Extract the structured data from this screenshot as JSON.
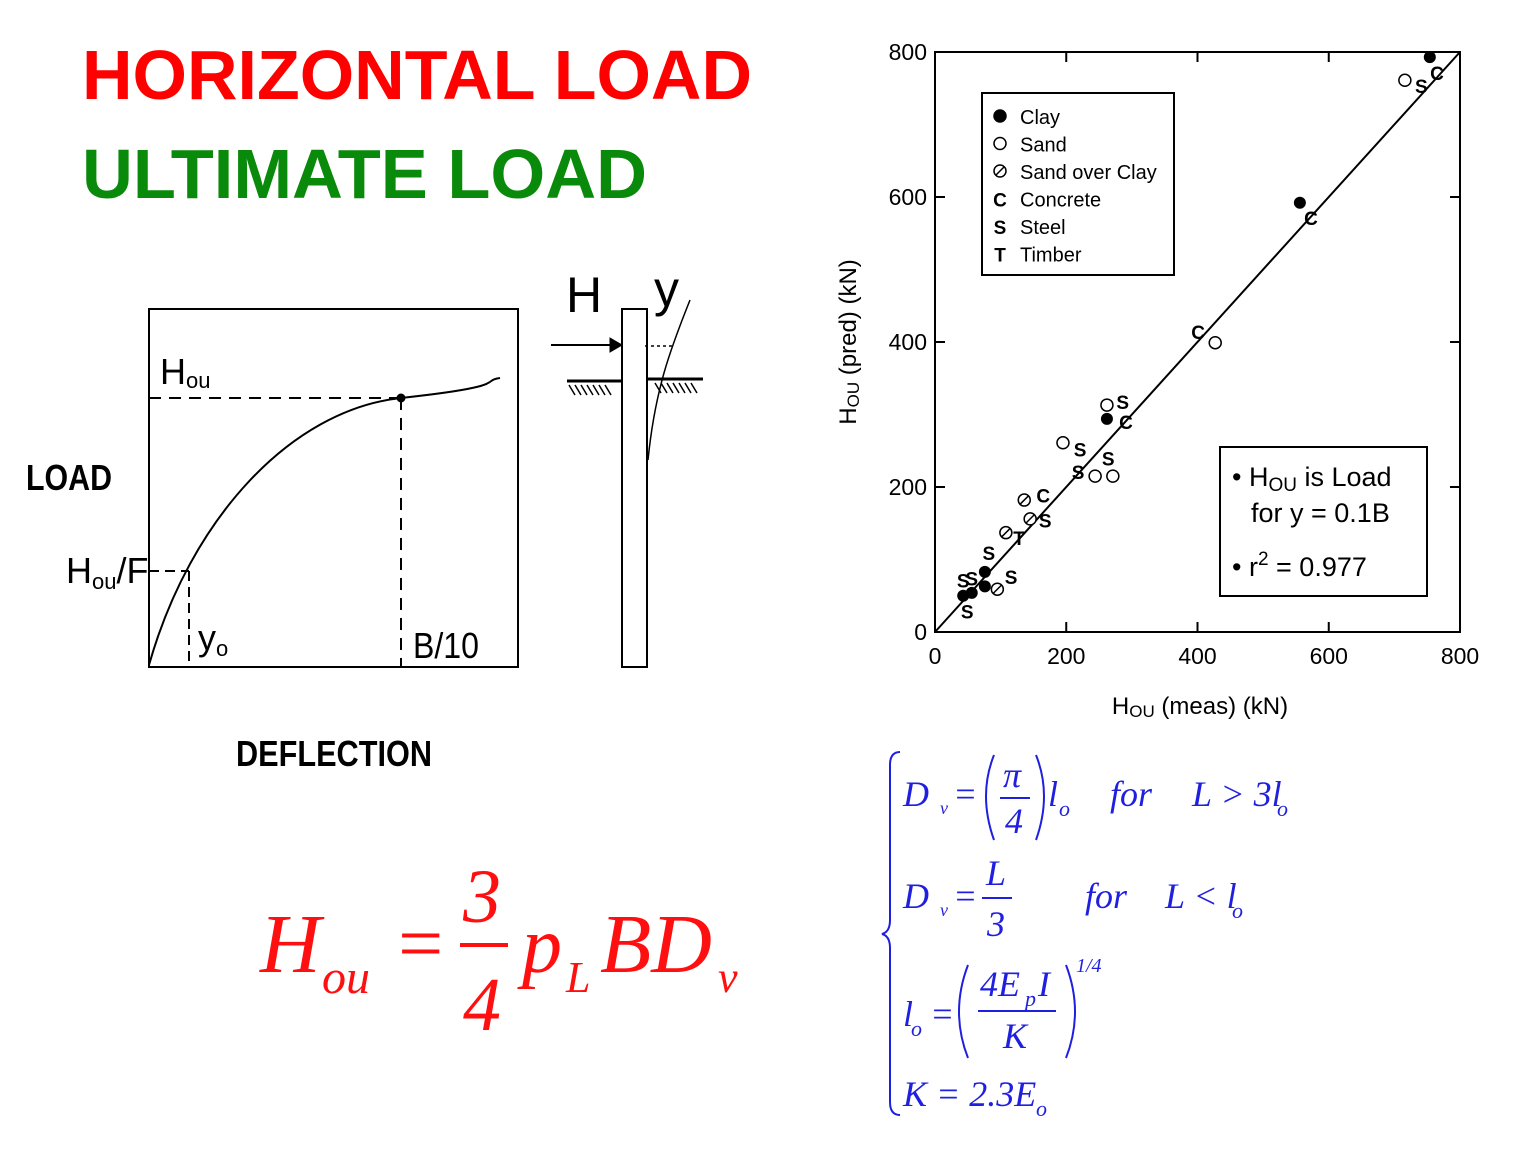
{
  "slide": {
    "title_line1": "HORIZONTAL LOAD",
    "title_line2": "ULTIMATE LOAD",
    "load_curve": {
      "y_label": "LOAD",
      "x_label": "DEFLECTION",
      "h_ou": [
        "H",
        "ou"
      ],
      "h_ou_f": [
        "H",
        "ou",
        "/F"
      ],
      "y_o": [
        "y",
        "o"
      ],
      "b10": "B/10"
    },
    "pile": {
      "force": "H",
      "deflection": "y"
    },
    "formula_main": [
      "H",
      "ou",
      "=",
      "3",
      "4",
      "p",
      "L",
      "BD",
      "v"
    ],
    "formula_system": [
      [
        "D",
        "v",
        "=",
        "π",
        "4",
        "l",
        "o",
        "for",
        "L > 3l",
        "o"
      ],
      [
        "D",
        "v",
        "=",
        "L",
        "3",
        "for",
        "L < l",
        "o"
      ],
      [
        "l",
        "o",
        "=",
        "4E",
        "p",
        "I",
        "K",
        "1/4"
      ],
      [
        "K = 2.3E",
        "o"
      ]
    ]
  },
  "chart_data": {
    "type": "scatter",
    "xlabel": [
      "H",
      "OU",
      " (meas) (kN)"
    ],
    "ylabel": [
      "H",
      "OU",
      " (pred) (kN)"
    ],
    "xlim": [
      0,
      800
    ],
    "ylim": [
      0,
      800
    ],
    "xticks": [
      0,
      200,
      400,
      600,
      800
    ],
    "yticks": [
      0,
      200,
      400,
      600,
      800
    ],
    "annotation": {
      "line1": [
        "• H",
        "OU",
        " is Load"
      ],
      "line2": "for y = 0.1B",
      "line3": [
        "• r",
        "2",
        " = 0.977"
      ]
    },
    "series": [
      {
        "name": "Clay",
        "marker": "filled",
        "color": "#000000",
        "x": [
          754,
          556,
          262,
          76,
          76,
          56,
          43
        ],
        "values": [
          793,
          592,
          294,
          83,
          63,
          54,
          50
        ]
      },
      {
        "name": "Sand",
        "marker": "open",
        "color": "#000000",
        "x": [
          716,
          427,
          262,
          195,
          244,
          271
        ],
        "values": [
          761,
          399,
          313,
          261,
          215,
          215
        ]
      },
      {
        "name": "Sand over Clay",
        "marker": "hatched",
        "color": "#000000",
        "x": [
          136,
          145,
          108,
          95
        ],
        "values": [
          182,
          156,
          137,
          59
        ]
      },
      {
        "name": "Concrete",
        "marker": "C",
        "color": "#000000",
        "x": [
          765,
          573,
          401,
          291,
          165
        ],
        "values": [
          771,
          571,
          414,
          290,
          188
        ]
      },
      {
        "name": "Steel",
        "marker": "S",
        "color": "#000000",
        "x": [
          741,
          286,
          221,
          218,
          264,
          168,
          82,
          116,
          56,
          43,
          49
        ],
        "values": [
          753,
          317,
          252,
          221,
          239,
          154,
          109,
          76,
          74,
          71,
          28
        ]
      },
      {
        "name": "Timber",
        "marker": "T",
        "color": "#000000",
        "x": [
          128
        ],
        "values": [
          130
        ]
      }
    ]
  }
}
